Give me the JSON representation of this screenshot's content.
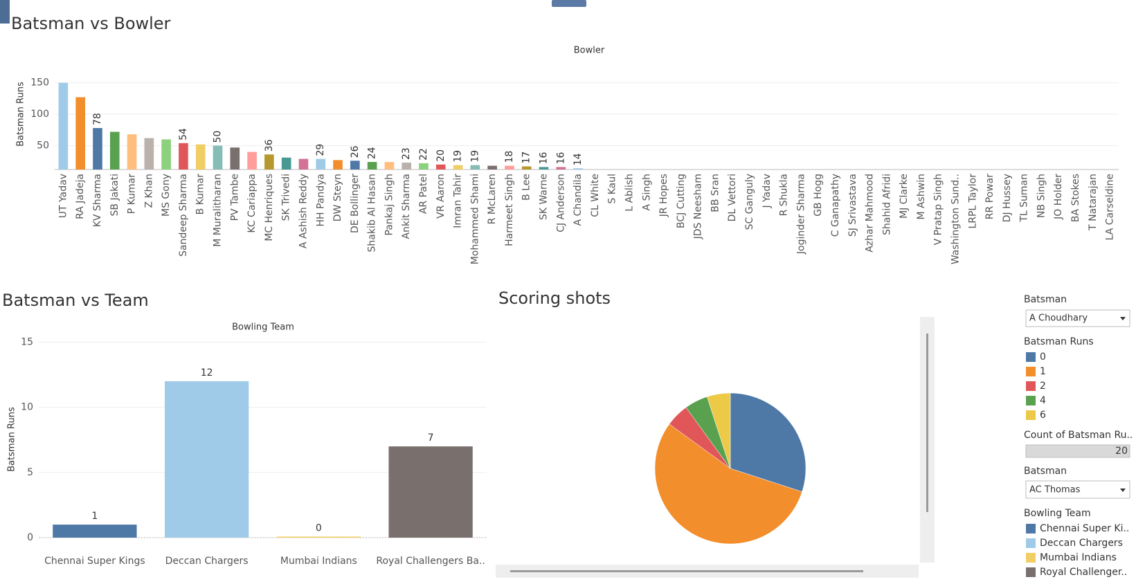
{
  "chart_data": [
    {
      "type": "bar",
      "title": "Batsman vs Bowler",
      "x_label": "Bowler",
      "y_label": "Batsman Runs",
      "categories": [
        "UT Yadav",
        "RA Jadeja",
        "KV Sharma",
        "SB Jakati",
        "P Kumar",
        "Z Khan",
        "MS Gony",
        "Sandeep Sharma",
        "B Kumar",
        "M Muralitharan",
        "PV Tambe",
        "KC Cariappa",
        "MC Henriques",
        "SK Trivedi",
        "A Ashish Reddy",
        "HH Pandya",
        "DW Steyn",
        "DE Bollinger",
        "Shakib Al Hasan",
        "Pankaj Singh",
        "Ankit Sharma",
        "AR Patel",
        "VR Aaron",
        "Imran Tahir",
        "Mohammed Shami",
        "R McLaren",
        "Harmeet Singh",
        "B Lee",
        "SK Warne",
        "CJ Anderson",
        "A Chandila",
        "CL White",
        "S Kaul",
        "L Ablish",
        "A Singh",
        "JR Hopes",
        "BCJ Cutting",
        "JDS Neesham",
        "BB Sran",
        "DL Vettori",
        "SC Ganguly",
        "J Yadav",
        "R Shukla",
        "Joginder Sharma",
        "GB Hogg",
        "C Ganapathy",
        "SJ Srivastava",
        "Azhar Mahmood",
        "Shahid Afridi",
        "MJ Clarke",
        "M Ashwin",
        "V Pratap Singh",
        "Washington Sund..",
        "LRPL Taylor",
        "RR Powar",
        "DJ Hussey",
        "TL Suman",
        "NB Singh",
        "JO Holder",
        "BA Stokes",
        "T Natarajan",
        "LA Carseldine"
      ],
      "values": [
        150,
        127,
        78,
        72,
        68,
        62,
        60,
        54,
        52,
        50,
        47,
        40,
        36,
        31,
        29,
        29,
        27,
        26,
        24,
        24,
        23,
        22,
        20,
        19,
        19,
        18,
        18,
        17,
        16,
        16,
        14,
        null,
        null,
        null,
        null,
        null,
        null,
        null,
        null,
        null,
        null,
        null,
        null,
        null,
        null,
        null,
        null,
        null,
        null,
        null,
        null,
        null,
        null,
        null,
        null,
        null,
        null,
        null,
        null,
        null,
        null,
        null
      ],
      "value_labels": [
        null,
        null,
        78,
        null,
        null,
        null,
        null,
        54,
        null,
        50,
        null,
        null,
        36,
        null,
        null,
        29,
        null,
        26,
        24,
        null,
        23,
        22,
        20,
        19,
        19,
        null,
        18,
        17,
        16,
        16,
        14,
        null,
        null,
        null,
        null,
        null,
        null,
        null,
        null,
        null,
        null,
        null,
        null,
        null,
        null,
        null,
        null,
        null,
        null,
        null,
        null,
        null,
        null,
        null,
        null,
        null,
        null,
        null,
        null,
        null,
        null,
        null
      ],
      "palette": [
        "#a0cbe8",
        "#f28e2b",
        "#4e79a7",
        "#59a14f",
        "#ffbe7d",
        "#bab0ac",
        "#8cd17d",
        "#e15759",
        "#f1ce63",
        "#86bcb6",
        "#79706e",
        "#ff9d9a",
        "#b6992d",
        "#499894",
        "#d37295"
      ],
      "ylim": [
        12,
        165
      ],
      "yticks": [
        50,
        100,
        150
      ],
      "grid": true
    },
    {
      "type": "bar",
      "title": "Batsman vs Team",
      "x_label": "Bowling Team",
      "y_label": "Batsman Runs",
      "categories": [
        "Chennai Super Kings",
        "Deccan Chargers",
        "Mumbai Indians",
        "Royal Challengers Ba.."
      ],
      "values": [
        1,
        12,
        0,
        7
      ],
      "colors": [
        "#4e79a7",
        "#a0cbe8",
        "#f1ce63",
        "#79706e"
      ],
      "ylim": [
        0,
        15.5
      ],
      "yticks": [
        0,
        5,
        10,
        15
      ],
      "grid": true
    },
    {
      "type": "pie",
      "title": "Scoring shots",
      "legend_title": "Batsman Runs",
      "categories": [
        "0",
        "1",
        "2",
        "4",
        "6"
      ],
      "values": [
        6,
        11,
        1,
        1,
        1
      ],
      "colors": [
        "#4e79a7",
        "#f28e2b",
        "#e15759",
        "#59a14f",
        "#edc948"
      ]
    }
  ],
  "count_legend": {
    "title": "Count of Batsman Ru..",
    "value": 20
  },
  "filters": [
    {
      "title": "Batsman",
      "value": "A Choudhary"
    },
    {
      "title": "Batsman",
      "value": "AC Thomas"
    }
  ],
  "team_legend": {
    "title": "Bowling Team",
    "labels": [
      "Chennai Super Ki..",
      "Deccan Chargers",
      "Mumbai Indians",
      "Royal Challenger.."
    ]
  }
}
